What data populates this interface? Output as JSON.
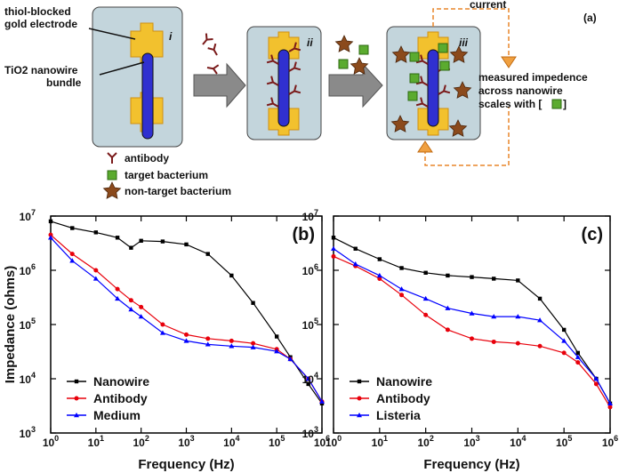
{
  "diagram": {
    "label": "(a)",
    "stage_labels": [
      "i",
      "ii",
      "iii"
    ],
    "electrode_label": [
      "thiol-blocked",
      "gold electrode"
    ],
    "nanowire_label": [
      "TiO2 nanowire",
      "bundle"
    ],
    "current_label": "current",
    "impedance_note": [
      "measured impedence",
      "across nanowire",
      "scales with [",
      "]"
    ],
    "legend": [
      "antibody",
      "target bacterium",
      "non-target bacterium"
    ]
  },
  "chart_data": [
    {
      "type": "line",
      "panel_label": "(b)",
      "xlabel": "Frequency (Hz)",
      "ylabel": "Impedance (ohms)",
      "log_x": true,
      "log_y": true,
      "legend": "lower left",
      "xlim": [
        1,
        1000000
      ],
      "ylim": [
        1000,
        10000000
      ],
      "xticks": [
        {
          "value": 1,
          "label": "10^0"
        },
        {
          "value": 10,
          "label": "10^1"
        },
        {
          "value": 100,
          "label": "10^2"
        },
        {
          "value": 1000,
          "label": "10^3"
        },
        {
          "value": 10000,
          "label": "10^4"
        },
        {
          "value": 100000,
          "label": "10^5"
        },
        {
          "value": 1000000,
          "label": "10^6"
        }
      ],
      "yticks": [
        {
          "value": 1000,
          "label": "10^3"
        },
        {
          "value": 10000,
          "label": "10^4"
        },
        {
          "value": 100000,
          "label": "10^5"
        },
        {
          "value": 1000000,
          "label": "10^6"
        },
        {
          "value": 10000000,
          "label": "10^7"
        }
      ],
      "x": [
        1,
        3,
        10,
        30,
        60,
        100,
        300,
        1000,
        3000,
        10000,
        30000,
        100000,
        200000,
        500000,
        1000000
      ],
      "series": [
        {
          "name": "Nanowire",
          "color": "#000000",
          "marker": "square",
          "values": [
            8000000,
            6000000,
            5000000,
            4000000,
            2600000,
            3500000,
            3400000,
            3000000,
            2000000,
            800000,
            250000,
            60000,
            25000,
            8000,
            3500
          ]
        },
        {
          "name": "Antibody",
          "color": "#e8000b",
          "marker": "circle",
          "values": [
            4500000,
            2000000,
            1000000,
            450000,
            280000,
            210000,
            100000,
            65000,
            55000,
            50000,
            45000,
            35000,
            23000,
            10000,
            3800
          ]
        },
        {
          "name": "Medium",
          "color": "#0000ff",
          "marker": "triangle",
          "values": [
            4000000,
            1500000,
            700000,
            300000,
            190000,
            140000,
            70000,
            50000,
            43000,
            40000,
            38000,
            32000,
            23000,
            10000,
            3800
          ]
        }
      ]
    },
    {
      "type": "line",
      "panel_label": "(c)",
      "xlabel": "Frequency (Hz)",
      "log_x": true,
      "log_y": true,
      "legend": "lower left",
      "xlim": [
        1,
        1000000
      ],
      "ylim": [
        1000,
        10000000
      ],
      "xticks": [
        {
          "value": 1,
          "label": "10^0"
        },
        {
          "value": 10,
          "label": "10^1"
        },
        {
          "value": 100,
          "label": "10^2"
        },
        {
          "value": 1000,
          "label": "10^3"
        },
        {
          "value": 10000,
          "label": "10^4"
        },
        {
          "value": 100000,
          "label": "10^5"
        },
        {
          "value": 1000000,
          "label": "10^6"
        }
      ],
      "yticks": [
        {
          "value": 1000,
          "label": "10^3"
        },
        {
          "value": 10000,
          "label": "10^4"
        },
        {
          "value": 100000,
          "label": "10^5"
        },
        {
          "value": 1000000,
          "label": "10^6"
        },
        {
          "value": 10000000,
          "label": "10^7"
        }
      ],
      "x": [
        1,
        3,
        10,
        30,
        100,
        300,
        1000,
        3000,
        10000,
        30000,
        100000,
        200000,
        500000,
        1000000
      ],
      "series": [
        {
          "name": "Nanowire",
          "color": "#000000",
          "marker": "square",
          "values": [
            4000000,
            2500000,
            1600000,
            1100000,
            900000,
            800000,
            750000,
            700000,
            650000,
            300000,
            80000,
            30000,
            10000,
            3500
          ]
        },
        {
          "name": "Antibody",
          "color": "#e8000b",
          "marker": "circle",
          "values": [
            1800000,
            1200000,
            700000,
            350000,
            150000,
            80000,
            55000,
            48000,
            45000,
            40000,
            30000,
            20000,
            8000,
            3000
          ]
        },
        {
          "name": "Listeria",
          "color": "#0000ff",
          "marker": "triangle",
          "values": [
            2500000,
            1300000,
            800000,
            450000,
            300000,
            200000,
            160000,
            140000,
            140000,
            120000,
            50000,
            25000,
            10000,
            3500
          ]
        }
      ]
    }
  ]
}
